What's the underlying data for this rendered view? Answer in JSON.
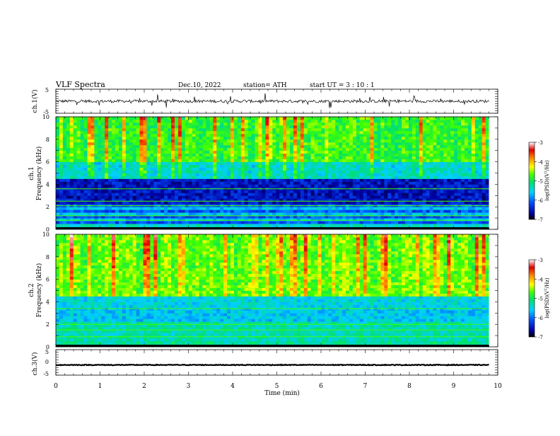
{
  "header": {
    "title": "VLF  Spectra",
    "date": "Dec.10, 2022",
    "station": "station= ATH",
    "start": "start  UT  =    3   : 10 : 1"
  },
  "chart_data": [
    {
      "type": "line",
      "panel": "ch1-waveform",
      "ylabel": "ch.1(V)",
      "ylim": [
        -5,
        5
      ],
      "yticks": [
        "5",
        "-5"
      ],
      "xlim": [
        0,
        10
      ],
      "series": [
        {
          "x_start": 0,
          "x_end": 9.8,
          "baseline": 0
        }
      ]
    },
    {
      "type": "heatmap",
      "panel": "ch1-spectrogram",
      "ylabel": "ch.1\nFrequency (kHz)",
      "ylim": [
        0,
        10
      ],
      "yticks": [
        "0",
        "2",
        "4",
        "6",
        "8",
        "10"
      ],
      "xlim": [
        0,
        10
      ],
      "data_end_min": 9.8,
      "colorbar": {
        "label": "log(PSD)(V²/Hz)",
        "range": [
          -7,
          -3
        ],
        "ticks": [
          "-3",
          "-4",
          "-5",
          "-6",
          "-7"
        ]
      }
    },
    {
      "type": "heatmap",
      "panel": "ch2-spectrogram",
      "ylabel": "ch.2\nFrequency (kHz)",
      "ylim": [
        0,
        10
      ],
      "yticks": [
        "0",
        "2",
        "4",
        "6",
        "8",
        "10"
      ],
      "xlim": [
        0,
        10
      ],
      "data_end_min": 9.8,
      "colorbar": {
        "label": "log(PSD)(V²/Hz)",
        "range": [
          -7,
          -3
        ],
        "ticks": [
          "-3",
          "-4",
          "-5",
          "-6",
          "-7"
        ]
      }
    },
    {
      "type": "line",
      "panel": "ch3-waveform",
      "ylabel": "ch.3(V)",
      "ylim": [
        -5,
        5
      ],
      "yticks": [
        "5",
        "0",
        "-5"
      ],
      "xlim": [
        0,
        10
      ],
      "series": [
        {
          "x_start": 0,
          "x_end": 9.8,
          "baseline": -1
        }
      ]
    }
  ],
  "x_axis": {
    "label": "Time  (min)",
    "ticks": [
      "0",
      "1",
      "2",
      "3",
      "4",
      "5",
      "6",
      "7",
      "8",
      "9",
      "10"
    ]
  },
  "colors": {
    "colormap": [
      "#000000",
      "#0000a0",
      "#0050ff",
      "#00d0ff",
      "#00e070",
      "#40ff00",
      "#ffff00",
      "#ff8000",
      "#e00000",
      "#ffffff"
    ],
    "ink": "#000000"
  }
}
